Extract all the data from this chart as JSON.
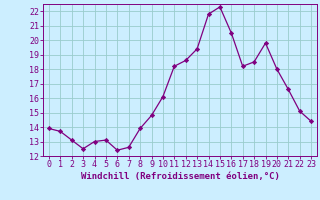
{
  "x": [
    0,
    1,
    2,
    3,
    4,
    5,
    6,
    7,
    8,
    9,
    10,
    11,
    12,
    13,
    14,
    15,
    16,
    17,
    18,
    19,
    20,
    21,
    22,
    23
  ],
  "y": [
    13.9,
    13.7,
    13.1,
    12.5,
    13.0,
    13.1,
    12.4,
    12.6,
    13.9,
    14.8,
    16.1,
    18.2,
    18.6,
    19.4,
    21.8,
    22.3,
    20.5,
    18.2,
    18.5,
    19.8,
    18.0,
    16.6,
    15.1,
    14.4
  ],
  "line_color": "#800080",
  "marker": "D",
  "marker_size": 2.2,
  "bg_color": "#cceeff",
  "grid_color": "#99cccc",
  "xlabel": "Windchill (Refroidissement éolien,°C)",
  "xlabel_color": "#800080",
  "tick_color": "#800080",
  "ylim": [
    12,
    22.5
  ],
  "xlim": [
    -0.5,
    23.5
  ],
  "yticks": [
    12,
    13,
    14,
    15,
    16,
    17,
    18,
    19,
    20,
    21,
    22
  ],
  "xticks": [
    0,
    1,
    2,
    3,
    4,
    5,
    6,
    7,
    8,
    9,
    10,
    11,
    12,
    13,
    14,
    15,
    16,
    17,
    18,
    19,
    20,
    21,
    22,
    23
  ],
  "label_fontsize": 6.5,
  "tick_fontsize": 6.0
}
